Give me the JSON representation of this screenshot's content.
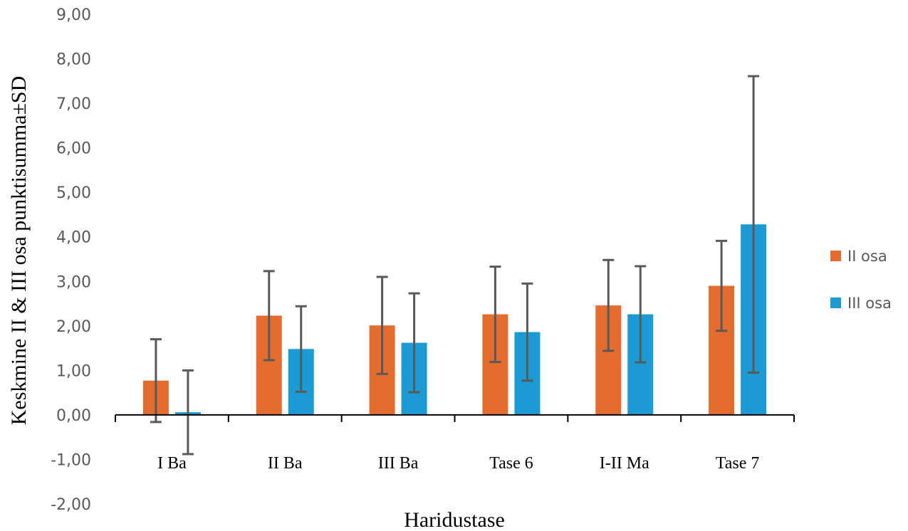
{
  "chart_data": {
    "type": "bar",
    "title": "",
    "xlabel": "Haridustase",
    "ylabel": "Keskmine II & III osa punktisumma±SD",
    "categories": [
      "I Ba",
      "II Ba",
      "III Ba",
      "Tase 6",
      "I-II Ma",
      "Tase 7"
    ],
    "ylim": [
      -2,
      9
    ],
    "yticks": [
      "-2,00",
      "-1,00",
      "0,00",
      "1,00",
      "2,00",
      "3,00",
      "4,00",
      "5,00",
      "6,00",
      "7,00",
      "8,00",
      "9,00"
    ],
    "grid": false,
    "legend_position": "right",
    "error_bars": "SD",
    "series": [
      {
        "name": "II osa",
        "color": "#E46C2E",
        "values": [
          0.77,
          2.23,
          2.01,
          2.26,
          2.46,
          2.9
        ],
        "sd": [
          0.93,
          1.0,
          1.09,
          1.07,
          1.02,
          1.01
        ]
      },
      {
        "name": "III osa",
        "color": "#1B9AD3",
        "values": [
          0.06,
          1.48,
          1.62,
          1.86,
          2.26,
          4.28
        ],
        "sd": [
          0.94,
          0.96,
          1.11,
          1.09,
          1.08,
          3.33
        ]
      }
    ]
  }
}
